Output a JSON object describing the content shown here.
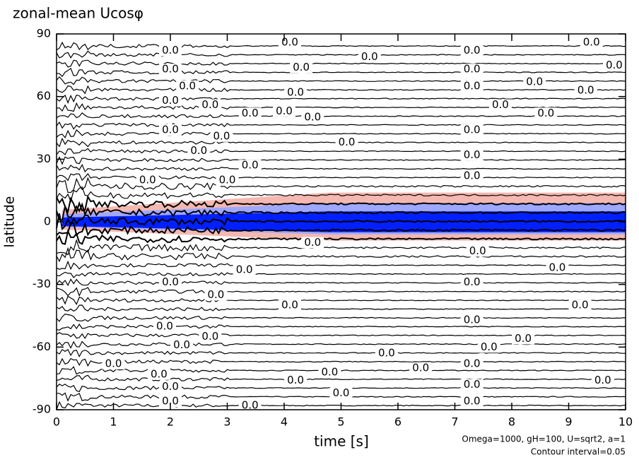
{
  "chart_data": {
    "type": "contour",
    "title": "zonal-mean Ucosφ",
    "xlabel": "time [s]",
    "ylabel": "latitude",
    "xlim": [
      0,
      10
    ],
    "xticks": [
      0,
      1,
      2,
      3,
      4,
      5,
      6,
      7,
      8,
      9,
      10
    ],
    "ylim": [
      -90,
      90
    ],
    "yticks": [
      -90,
      -60,
      -30,
      0,
      30,
      60,
      90
    ],
    "contour_label": "0.0",
    "annotations": [
      "Omega=1000, gH=100, U=sqrt2, a=1",
      "Contour interval=0.05"
    ]
  }
}
